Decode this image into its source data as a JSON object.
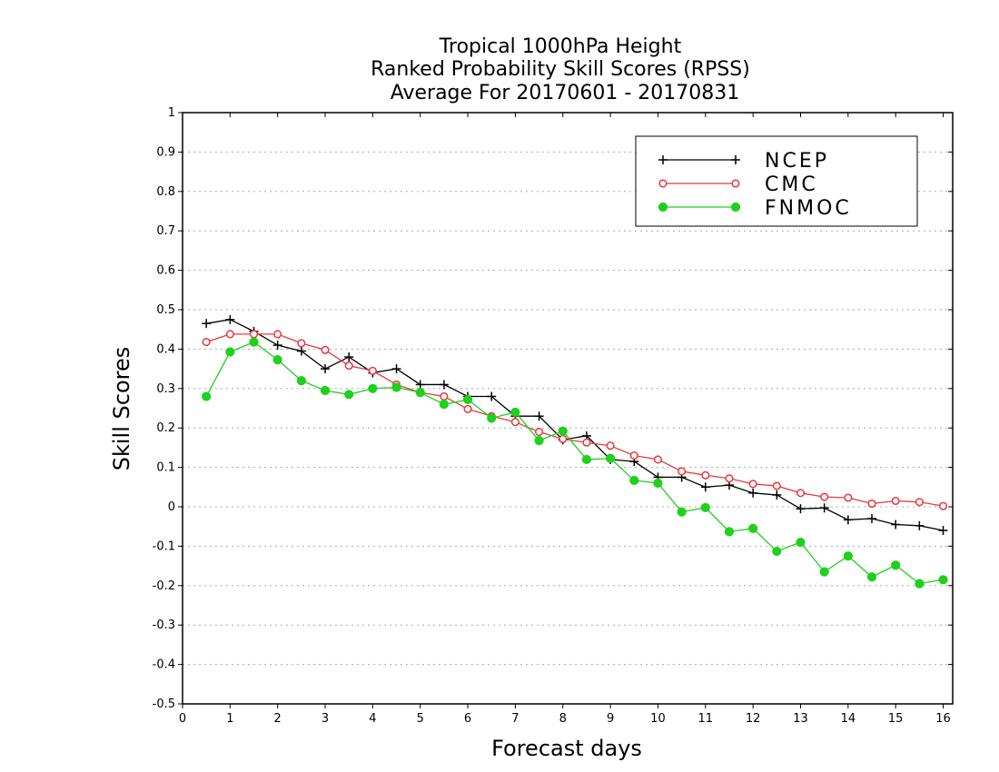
{
  "chart_data": {
    "type": "line",
    "title_lines": [
      "Tropical 1000hPa Height",
      "Ranked Probability Skill Scores (RPSS)",
      "Average For 20170601 - 20170831"
    ],
    "xlabel": "Forecast days",
    "ylabel": "Skill Scores",
    "xlim": [
      0,
      16.2
    ],
    "ylim": [
      -0.5,
      1
    ],
    "x_ticks": [
      0,
      1,
      2,
      3,
      4,
      5,
      6,
      7,
      8,
      9,
      10,
      11,
      12,
      13,
      14,
      15,
      16
    ],
    "y_ticks": [
      -0.5,
      -0.4,
      -0.3,
      -0.2,
      -0.1,
      0,
      0.1,
      0.2,
      0.3,
      0.4,
      0.5,
      0.6,
      0.7,
      0.8,
      0.9,
      1
    ],
    "y_tick_labels": [
      "-0.5",
      "-0.4",
      "-0.3",
      "-0.2",
      "-0.1",
      "0",
      "0.1",
      "0.2",
      "0.3",
      "0.4",
      "0.5",
      "0.6",
      "0.7",
      "0.8",
      "0.9",
      "1"
    ],
    "grid": "horizontal dotted",
    "legend_position": "top-right",
    "x": [
      0.5,
      1,
      1.5,
      2,
      2.5,
      3,
      3.5,
      4,
      4.5,
      5,
      5.5,
      6,
      6.5,
      7,
      7.5,
      8,
      8.5,
      9,
      9.5,
      10,
      10.5,
      11,
      11.5,
      12,
      12.5,
      13,
      13.5,
      14,
      14.5,
      15,
      15.5,
      16
    ],
    "series": [
      {
        "name": "NCEP",
        "color": "#000000",
        "marker": "plus",
        "values": [
          0.465,
          0.475,
          0.445,
          0.41,
          0.395,
          0.35,
          0.38,
          0.34,
          0.35,
          0.31,
          0.31,
          0.28,
          0.28,
          0.23,
          0.23,
          0.17,
          0.18,
          0.12,
          0.115,
          0.075,
          0.075,
          0.05,
          0.055,
          0.035,
          0.03,
          -0.005,
          -0.003,
          -0.033,
          -0.03,
          -0.045,
          -0.048,
          -0.06
        ]
      },
      {
        "name": "CMC",
        "color": "#e8383d",
        "marker": "open-circle",
        "values": [
          0.418,
          0.438,
          0.438,
          0.438,
          0.415,
          0.398,
          0.358,
          0.345,
          0.31,
          0.29,
          0.28,
          0.248,
          0.23,
          0.215,
          0.19,
          0.172,
          0.163,
          0.155,
          0.13,
          0.12,
          0.09,
          0.08,
          0.072,
          0.058,
          0.053,
          0.035,
          0.025,
          0.023,
          0.008,
          0.015,
          0.012,
          0.002
        ]
      },
      {
        "name": "FNMOC",
        "color": "#1fd01f",
        "marker": "filled-circle",
        "values": [
          0.28,
          0.393,
          0.418,
          0.373,
          0.32,
          0.295,
          0.285,
          0.3,
          0.303,
          0.29,
          0.26,
          0.272,
          0.225,
          0.24,
          0.168,
          0.192,
          0.12,
          0.123,
          0.067,
          0.06,
          -0.013,
          -0.002,
          -0.063,
          -0.055,
          -0.113,
          -0.09,
          -0.165,
          -0.125,
          -0.178,
          -0.148,
          -0.195,
          -0.185
        ]
      }
    ]
  }
}
